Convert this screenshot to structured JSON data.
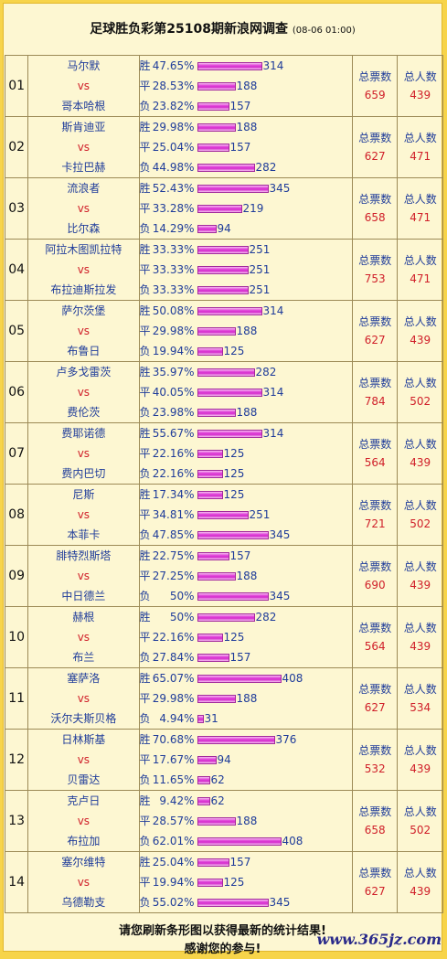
{
  "header": {
    "title": "足球胜负彩第25108期新浪网调查",
    "time": "(08-06 01:00)"
  },
  "labels": {
    "win": "胜",
    "draw": "平",
    "loss": "负",
    "total_votes": "总票数",
    "total_people": "总人数",
    "vs": "vs"
  },
  "matches": [
    {
      "no": "01",
      "home": "马尔默",
      "away": "哥本哈根",
      "win": {
        "pct": "47.65%",
        "count": 314
      },
      "draw": {
        "pct": "28.53%",
        "count": 188
      },
      "loss": {
        "pct": "23.82%",
        "count": 157
      },
      "votes": 659,
      "people": 439
    },
    {
      "no": "02",
      "home": "斯肯迪亚",
      "away": "卡拉巴赫",
      "win": {
        "pct": "29.98%",
        "count": 188
      },
      "draw": {
        "pct": "25.04%",
        "count": 157
      },
      "loss": {
        "pct": "44.98%",
        "count": 282
      },
      "votes": 627,
      "people": 471
    },
    {
      "no": "03",
      "home": "流浪者",
      "away": "比尔森",
      "win": {
        "pct": "52.43%",
        "count": 345
      },
      "draw": {
        "pct": "33.28%",
        "count": 219
      },
      "loss": {
        "pct": "14.29%",
        "count": 94
      },
      "votes": 658,
      "people": 471
    },
    {
      "no": "04",
      "home": "阿拉木图凯拉特",
      "away": "布拉迪斯拉发",
      "win": {
        "pct": "33.33%",
        "count": 251
      },
      "draw": {
        "pct": "33.33%",
        "count": 251
      },
      "loss": {
        "pct": "33.33%",
        "count": 251
      },
      "votes": 753,
      "people": 471
    },
    {
      "no": "05",
      "home": "萨尔茨堡",
      "away": "布鲁日",
      "win": {
        "pct": "50.08%",
        "count": 314
      },
      "draw": {
        "pct": "29.98%",
        "count": 188
      },
      "loss": {
        "pct": "19.94%",
        "count": 125
      },
      "votes": 627,
      "people": 439
    },
    {
      "no": "06",
      "home": "卢多戈雷茨",
      "away": "费伦茨",
      "win": {
        "pct": "35.97%",
        "count": 282
      },
      "draw": {
        "pct": "40.05%",
        "count": 314
      },
      "loss": {
        "pct": "23.98%",
        "count": 188
      },
      "votes": 784,
      "people": 502
    },
    {
      "no": "07",
      "home": "费耶诺德",
      "away": "费内巴切",
      "win": {
        "pct": "55.67%",
        "count": 314
      },
      "draw": {
        "pct": "22.16%",
        "count": 125
      },
      "loss": {
        "pct": "22.16%",
        "count": 125
      },
      "votes": 564,
      "people": 439
    },
    {
      "no": "08",
      "home": "尼斯",
      "away": "本菲卡",
      "win": {
        "pct": "17.34%",
        "count": 125
      },
      "draw": {
        "pct": "34.81%",
        "count": 251
      },
      "loss": {
        "pct": "47.85%",
        "count": 345
      },
      "votes": 721,
      "people": 502
    },
    {
      "no": "09",
      "home": "腓特烈斯塔",
      "away": "中日德兰",
      "win": {
        "pct": "22.75%",
        "count": 157
      },
      "draw": {
        "pct": "27.25%",
        "count": 188
      },
      "loss": {
        "pct": "50%",
        "count": 345
      },
      "votes": 690,
      "people": 439
    },
    {
      "no": "10",
      "home": "赫根",
      "away": "布兰",
      "win": {
        "pct": "50%",
        "count": 282
      },
      "draw": {
        "pct": "22.16%",
        "count": 125
      },
      "loss": {
        "pct": "27.84%",
        "count": 157
      },
      "votes": 564,
      "people": 439
    },
    {
      "no": "11",
      "home": "塞萨洛",
      "away": "沃尔夫斯贝格",
      "win": {
        "pct": "65.07%",
        "count": 408
      },
      "draw": {
        "pct": "29.98%",
        "count": 188
      },
      "loss": {
        "pct": "4.94%",
        "count": 31
      },
      "votes": 627,
      "people": 534
    },
    {
      "no": "12",
      "home": "日林斯基",
      "away": "贝雷达",
      "win": {
        "pct": "70.68%",
        "count": 376
      },
      "draw": {
        "pct": "17.67%",
        "count": 94
      },
      "loss": {
        "pct": "11.65%",
        "count": 62
      },
      "votes": 532,
      "people": 439
    },
    {
      "no": "13",
      "home": "克卢日",
      "away": "布拉加",
      "win": {
        "pct": "9.42%",
        "count": 62
      },
      "draw": {
        "pct": "28.57%",
        "count": 188
      },
      "loss": {
        "pct": "62.01%",
        "count": 408
      },
      "votes": 658,
      "people": 502
    },
    {
      "no": "14",
      "home": "塞尔维特",
      "away": "乌德勒支",
      "win": {
        "pct": "25.04%",
        "count": 157
      },
      "draw": {
        "pct": "19.94%",
        "count": 125
      },
      "loss": {
        "pct": "55.02%",
        "count": 345
      },
      "votes": 627,
      "people": 439
    }
  ],
  "footer": {
    "line1": "请您刷新条形图以获得最新的统计结果!",
    "line2": "感谢您的参与!"
  },
  "watermark": "www.365jz.com"
}
